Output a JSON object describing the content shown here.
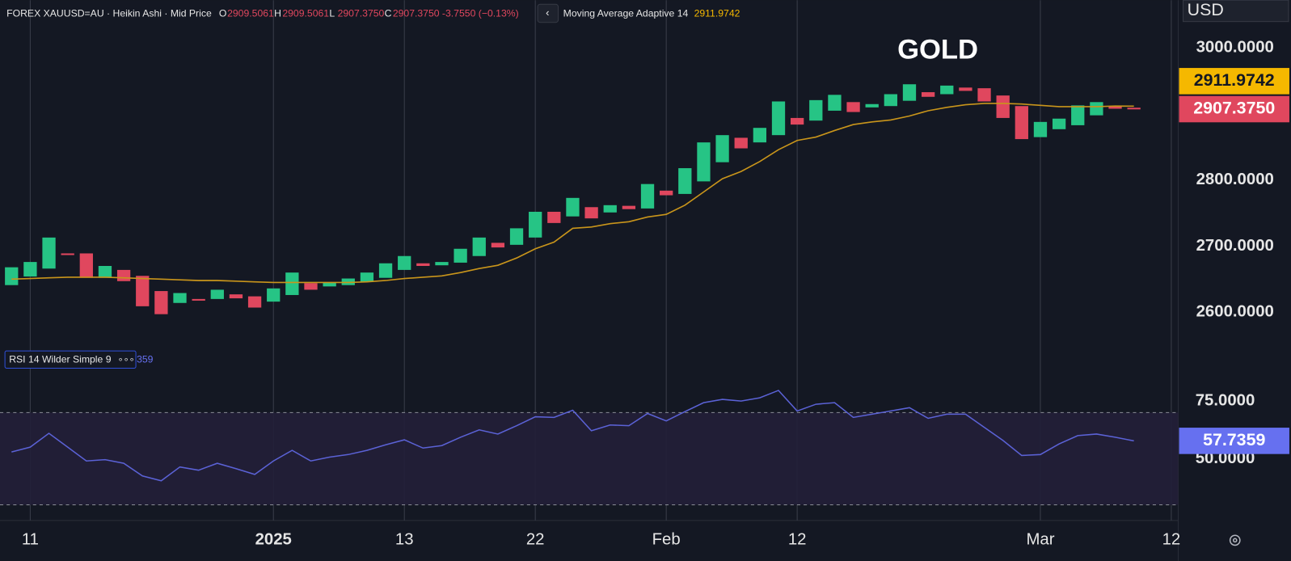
{
  "header": {
    "symbol": "FOREX XAUUSD=AU · Heikin Ashi · Mid Price",
    "ohlc": [
      {
        "key": "O",
        "value": "2909.5061"
      },
      {
        "key": "H",
        "value": "2909.5061"
      },
      {
        "key": "L",
        "value": "2907.3750"
      },
      {
        "key": "C",
        "value": "2907.3750"
      }
    ],
    "change": "-3.7550 (−0.13%)",
    "rsi_value_clipped": "359"
  },
  "currency": "USD",
  "chart_data": [
    {
      "type": "candlestick",
      "title": "GOLD",
      "categories": [
        null,
        "11",
        null,
        null,
        null,
        null,
        null,
        null,
        null,
        null,
        null,
        null,
        null,
        null,
        "2025",
        null,
        null,
        null,
        null,
        null,
        null,
        "13",
        null,
        null,
        null,
        null,
        null,
        null,
        "22",
        null,
        null,
        null,
        null,
        null,
        null,
        "Feb",
        null,
        null,
        null,
        null,
        null,
        null,
        "12",
        null,
        null,
        null,
        null,
        null,
        null,
        null,
        null,
        null,
        null,
        null,
        null,
        "Mar",
        null,
        null,
        null,
        null,
        null,
        null,
        "12"
      ],
      "open": [
        2641,
        2654,
        2666,
        2689,
        2689,
        2652,
        2664,
        2655,
        2632,
        2614,
        2620,
        2620,
        2627,
        2624,
        2616,
        2626,
        2644,
        2639,
        2641,
        2646,
        2652,
        2664,
        2674,
        2671,
        2675,
        2685,
        2705,
        2702,
        2713,
        2752,
        2745,
        2759,
        2751,
        2761,
        2757,
        2784,
        2779,
        2798,
        2827,
        2864,
        2857,
        2868,
        2894,
        2890,
        2905,
        2918,
        2910,
        2912,
        2920,
        2933,
        2930,
        2940,
        2939,
        2928,
        2912,
        2865,
        2877,
        2883,
        2898,
        2912,
        2909.5061,
        null,
        null
      ],
      "close": [
        2668,
        2676,
        2713,
        2687,
        2652,
        2670,
        2647,
        2609,
        2597,
        2629,
        2619,
        2634,
        2621,
        2607,
        2636,
        2660,
        2634,
        2645,
        2651,
        2660,
        2674,
        2685,
        2670,
        2676,
        2696,
        2713,
        2698,
        2727,
        2752,
        2735,
        2773,
        2742,
        2762,
        2756,
        2794,
        2777,
        2818,
        2857,
        2868,
        2848,
        2879,
        2919,
        2884,
        2921,
        2929,
        2903,
        2915,
        2930,
        2945,
        2926,
        2943,
        2935,
        2919,
        2894,
        2862,
        2888,
        2893,
        2913,
        2918,
        2908,
        2907.375,
        null,
        null
      ],
      "up_color": "#26c485",
      "down_color": "#e0475e",
      "series": [
        {
          "name": "Moving Average Adaptive 14",
          "color": "#c9951b",
          "values": [
            2650,
            2651,
            2652,
            2653,
            2653,
            2653,
            2652,
            2651,
            2650,
            2649,
            2648,
            2648,
            2647,
            2646,
            2645,
            2645,
            2645,
            2645,
            2645,
            2646,
            2648,
            2651,
            2653,
            2655,
            2660,
            2666,
            2671,
            2682,
            2696,
            2706,
            2727,
            2729,
            2734,
            2737,
            2744,
            2748,
            2762,
            2782,
            2802,
            2813,
            2828,
            2846,
            2860,
            2865,
            2875,
            2884,
            2888,
            2891,
            2897,
            2905,
            2910,
            2914,
            2916,
            2916,
            2915,
            2913,
            2911,
            2911,
            2911,
            2912,
            2911.9742,
            null,
            null
          ]
        }
      ],
      "ylim": [
        2551.4,
        3072.3
      ],
      "yticks": [
        {
          "value": 3000,
          "label": "3000.0000"
        },
        {
          "value": 2800,
          "label": "2800.0000"
        },
        {
          "value": 2700,
          "label": "2700.0000"
        },
        {
          "value": 2600,
          "label": "2600.0000"
        }
      ],
      "last_values": [
        {
          "value": 2911.9742,
          "label": "2911.9742",
          "color": "#f5b800"
        },
        {
          "value": 2907.375,
          "label": "2907.3750",
          "color": "#e0475e"
        }
      ]
    },
    {
      "type": "line",
      "title": "RSI 14 Wilder Simple 9",
      "series": [
        {
          "name": "RSI",
          "color": "#5b62d6",
          "values": [
            52.9,
            55,
            61,
            55,
            49,
            49.6,
            48,
            42.5,
            40.4,
            46.4,
            45,
            48,
            45.7,
            43.2,
            49,
            53.6,
            49,
            50.7,
            51.8,
            53.6,
            56,
            58.2,
            54.6,
            55.7,
            59.3,
            62.5,
            60.7,
            64.3,
            68.2,
            67.9,
            71,
            62.1,
            64.6,
            64.3,
            69.6,
            66.4,
            70.4,
            74.3,
            75.7,
            75,
            76.4,
            79.6,
            70.7,
            73.6,
            74.3,
            67.9,
            69.3,
            70.7,
            72.1,
            67.5,
            69.3,
            69.3,
            63.6,
            57.9,
            51.4,
            51.8,
            56.4,
            60,
            60.7,
            59.3,
            57.7359,
            null,
            null
          ]
        }
      ],
      "ylim": [
        23.2,
        99.6
      ],
      "yticks": [
        {
          "value": 75,
          "label": "75.0000"
        },
        {
          "value": 50,
          "label": "50.0000"
        }
      ],
      "levels": [
        70,
        30
      ],
      "last_values": [
        {
          "value": 57.7359,
          "label": "57.7359",
          "color": "#6670f0"
        }
      ]
    }
  ]
}
